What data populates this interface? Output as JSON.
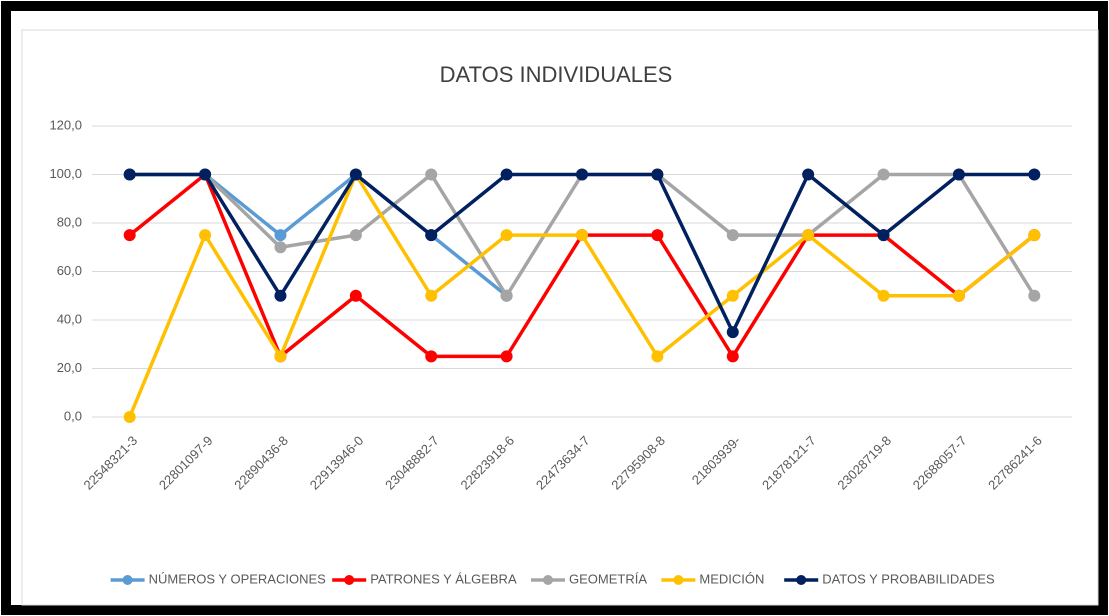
{
  "chart_data": {
    "type": "line",
    "title": "DATOS INDIVIDUALES",
    "categories": [
      "22548321-3",
      "22801097-9",
      "22890436-8",
      "22913946-0",
      "23048882-7",
      "22823918-6",
      "22473634-7",
      "22795908-8",
      "21803939-",
      "21878121-7",
      "23028719-8",
      "22688057-7",
      "22786241-6"
    ],
    "series": [
      {
        "name": "NÚMEROS Y OPERACIONES",
        "color": "#5b9bd5",
        "values": [
          100,
          100,
          75,
          100,
          75,
          50,
          null,
          null,
          null,
          null,
          null,
          null,
          null
        ]
      },
      {
        "name": "PATRONES Y ÁLGEBRA",
        "color": "#ff0000",
        "values": [
          75,
          100,
          25,
          50,
          25,
          25,
          75,
          75,
          25,
          75,
          75,
          50,
          75
        ]
      },
      {
        "name": "GEOMETRÍA",
        "color": "#a5a5a5",
        "values": [
          100,
          100,
          70,
          75,
          100,
          50,
          100,
          100,
          75,
          75,
          100,
          100,
          50
        ]
      },
      {
        "name": "MEDICIÓN",
        "color": "#ffc000",
        "values": [
          0,
          75,
          25,
          100,
          50,
          75,
          75,
          25,
          50,
          75,
          50,
          50,
          75
        ]
      },
      {
        "name": "DATOS Y PROBABILIDADES",
        "color": "#002060",
        "values": [
          100,
          100,
          50,
          100,
          75,
          100,
          100,
          100,
          35,
          100,
          75,
          100,
          100
        ]
      }
    ],
    "ylim": [
      0,
      120
    ],
    "yticks": [
      {
        "value": 0,
        "label": "0,0"
      },
      {
        "value": 20,
        "label": "20,0"
      },
      {
        "value": 40,
        "label": "40,0"
      },
      {
        "value": 60,
        "label": "60,0"
      },
      {
        "value": 80,
        "label": "80,0"
      },
      {
        "value": 100,
        "label": "100,0"
      },
      {
        "value": 120,
        "label": "120,0"
      }
    ],
    "grid": true,
    "legend": "bottom"
  }
}
